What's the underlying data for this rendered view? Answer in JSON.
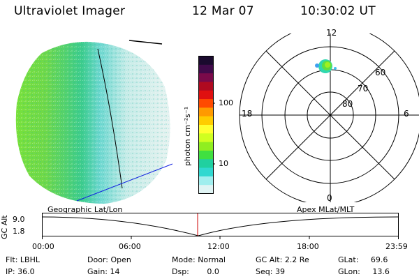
{
  "header": {
    "instrument": "Ultraviolet Imager",
    "date": "12 Mar 07",
    "time": "10:30:02 UT"
  },
  "colorbar": {
    "label": "photon cm⁻²s⁻¹",
    "ticks": [
      "100",
      "10"
    ],
    "colors": [
      "#1a0a2e",
      "#400a4a",
      "#7a0a4a",
      "#b00a20",
      "#e01010",
      "#ff4a00",
      "#ff9a00",
      "#ffcc00",
      "#ffff30",
      "#d0ff20",
      "#90ee20",
      "#40e040",
      "#20d0a0",
      "#30d8d0",
      "#a0eeee",
      "#e0f4f4"
    ]
  },
  "polar_plot": {
    "mlt_labels": {
      "top": "12",
      "left": "18",
      "right": "6",
      "bottom": "0"
    },
    "lat_labels": [
      "60",
      "70",
      "80"
    ]
  },
  "timeline": {
    "y_axis_label": "GC Alt",
    "y_ticks": [
      "9.0",
      "1.8"
    ],
    "left_title": "Geographic Lat/Lon",
    "right_title": "Apex MLat/MLT",
    "x_ticks": [
      "00:00",
      "06:00",
      "12:00",
      "18:00",
      "23:59"
    ]
  },
  "status": {
    "row1": [
      {
        "key": "Flt:",
        "value": "LBHL"
      },
      {
        "key": "Door:",
        "value": "Open"
      },
      {
        "key": "Mode:",
        "value": "Normal"
      },
      {
        "key": "GC Alt:",
        "value": "2.2 Re"
      },
      {
        "key": "GLat:",
        "value": "69.6"
      }
    ],
    "row2": [
      {
        "key": "IP:",
        "value": "36.0"
      },
      {
        "key": "Gain:",
        "value": "14"
      },
      {
        "key": "Dsp:",
        "value": "0.0"
      },
      {
        "key": "Seq:",
        "value": "39"
      },
      {
        "key": "GLon:",
        "value": "13.6"
      }
    ]
  }
}
